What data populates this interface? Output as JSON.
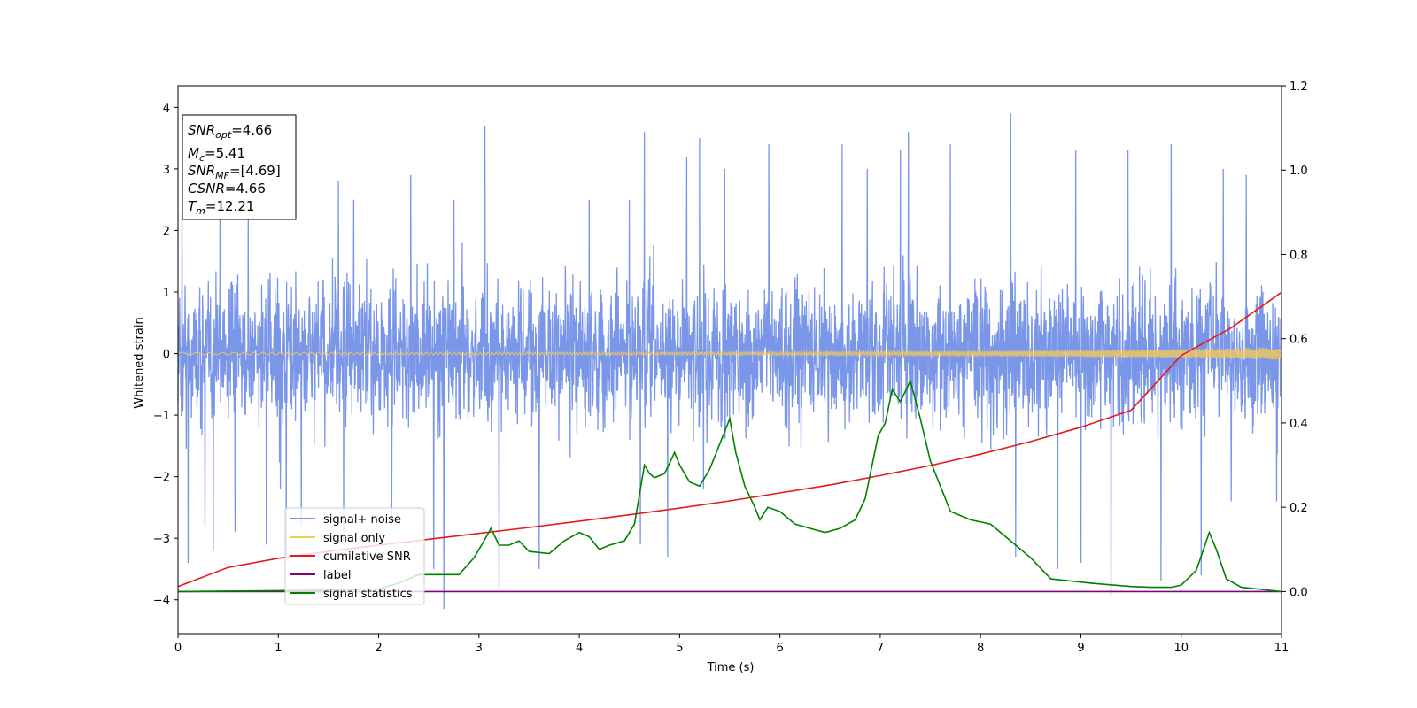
{
  "chart_data": {
    "type": "line",
    "xlabel": "Time (s)",
    "ylabel": "Whitened strain",
    "xlim": [
      0,
      11
    ],
    "ylim": [
      -4.55,
      4.35
    ],
    "y2lim": [
      -0.1,
      1.2
    ],
    "x_ticks": [
      "0",
      "1",
      "2",
      "3",
      "4",
      "5",
      "6",
      "7",
      "8",
      "9",
      "10",
      "11"
    ],
    "y_ticks": [
      "4",
      "3",
      "2",
      "1",
      "0",
      "−1",
      "−2",
      "−3",
      "−4"
    ],
    "y_tick_values": [
      4,
      3,
      2,
      1,
      0,
      -1,
      -2,
      -3,
      -4
    ],
    "y2_ticks": [
      "1.2",
      "1.0",
      "0.8",
      "0.6",
      "0.4",
      "0.2",
      "0.0"
    ],
    "y2_tick_values": [
      1.2,
      1.0,
      0.8,
      0.6,
      0.4,
      0.2,
      0.0
    ],
    "annotation": {
      "snr_opt": {
        "base": "SNR",
        "sub": "opt",
        "value": "=4.66"
      },
      "mc": {
        "base": "M",
        "sub": "c",
        "value": "=5.41"
      },
      "snr_mf": {
        "base": "SNR",
        "sub": "MF",
        "value": "=[4.69]"
      },
      "csnr": {
        "base": "CSNR",
        "value": "=4.66"
      },
      "tm": {
        "base": "T",
        "sub": "m",
        "value": "=12.21"
      }
    },
    "legend": {
      "placement": "lower-left",
      "entries": [
        {
          "label": "signal+ noise",
          "color": "#7a96e8"
        },
        {
          "label": "signal only",
          "color": "#f5c95a"
        },
        {
          "label": "cumilative SNR",
          "color": "#e31a1c"
        },
        {
          "label": "label",
          "color": "#800080"
        },
        {
          "label": "signal statistics",
          "color": "#008000"
        }
      ]
    },
    "series": [
      {
        "name": "signal+ noise",
        "axis": "left",
        "color": "#7a96e8",
        "kind": "noise",
        "spikes": [
          [
            0.04,
            2.3
          ],
          [
            0.1,
            -3.4
          ],
          [
            0.27,
            -2.8
          ],
          [
            0.35,
            -3.2
          ],
          [
            0.42,
            2.3
          ],
          [
            0.57,
            -2.9
          ],
          [
            0.7,
            2.3
          ],
          [
            0.88,
            -3.1
          ],
          [
            1.02,
            -2.2
          ],
          [
            1.08,
            -3.3
          ],
          [
            1.23,
            -2.8
          ],
          [
            1.6,
            2.8
          ],
          [
            1.65,
            -3.1
          ],
          [
            1.75,
            2.5
          ],
          [
            2.13,
            -2.8
          ],
          [
            2.32,
            2.9
          ],
          [
            2.55,
            -3.5
          ],
          [
            2.65,
            -4.15
          ],
          [
            2.75,
            2.5
          ],
          [
            3.06,
            3.7
          ],
          [
            3.2,
            -3.8
          ],
          [
            3.6,
            -3.5
          ],
          [
            4.1,
            2.5
          ],
          [
            4.5,
            2.5
          ],
          [
            4.61,
            -3.1
          ],
          [
            4.65,
            3.6
          ],
          [
            4.88,
            -3.3
          ],
          [
            5.07,
            3.2
          ],
          [
            5.24,
            -2.2
          ],
          [
            5.2,
            3.5
          ],
          [
            5.45,
            3.0
          ],
          [
            5.89,
            3.4
          ],
          [
            6.62,
            3.4
          ],
          [
            6.87,
            3.0
          ],
          [
            7.2,
            3.3
          ],
          [
            7.28,
            3.6
          ],
          [
            7.7,
            3.4
          ],
          [
            8.3,
            3.9
          ],
          [
            8.35,
            -3.3
          ],
          [
            8.77,
            -3.5
          ],
          [
            8.95,
            3.3
          ],
          [
            9.0,
            -3.4
          ],
          [
            9.3,
            -3.95
          ],
          [
            9.47,
            3.3
          ],
          [
            9.8,
            -3.7
          ],
          [
            9.9,
            3.4
          ],
          [
            10.2,
            -3.6
          ],
          [
            10.42,
            3.0
          ],
          [
            10.5,
            -2.4
          ],
          [
            10.65,
            2.9
          ],
          [
            10.95,
            -2.4
          ]
        ]
      },
      {
        "name": "signal only",
        "axis": "left",
        "color": "#f5c95a",
        "kind": "chirp",
        "start_amplitude": 0.02,
        "end_amplitude": 0.1
      },
      {
        "name": "cumilative SNR",
        "axis": "right",
        "color": "#e31a1c",
        "x": [
          0,
          0.5,
          1,
          1.5,
          2,
          2.5,
          3,
          3.5,
          4,
          4.5,
          5,
          5.5,
          6,
          6.5,
          7,
          7.5,
          8,
          8.5,
          9,
          9.5,
          10,
          10.5,
          11
        ],
        "values": [
          0.012,
          0.057,
          0.079,
          0.095,
          0.11,
          0.124,
          0.138,
          0.152,
          0.167,
          0.182,
          0.198,
          0.215,
          0.234,
          0.253,
          0.275,
          0.299,
          0.326,
          0.356,
          0.39,
          0.43,
          0.56,
          0.626,
          0.71
        ]
      },
      {
        "name": "label",
        "axis": "right",
        "color": "#800080",
        "x": [
          0,
          11
        ],
        "values": [
          0.0,
          0.0
        ]
      },
      {
        "name": "signal statistics",
        "axis": "right",
        "color": "#008000",
        "x": [
          0,
          1,
          1.5,
          2,
          2.2,
          2.4,
          2.6,
          2.8,
          2.95,
          3.05,
          3.12,
          3.2,
          3.3,
          3.4,
          3.5,
          3.7,
          3.85,
          4.0,
          4.1,
          4.2,
          4.3,
          4.45,
          4.55,
          4.65,
          4.7,
          4.75,
          4.85,
          4.95,
          5.0,
          5.1,
          5.2,
          5.3,
          5.4,
          5.5,
          5.56,
          5.65,
          5.75,
          5.8,
          5.88,
          6.0,
          6.15,
          6.3,
          6.45,
          6.6,
          6.75,
          6.85,
          6.98,
          7.05,
          7.12,
          7.2,
          7.3,
          7.4,
          7.5,
          7.7,
          7.9,
          8.1,
          8.3,
          8.5,
          8.7,
          8.9,
          9.1,
          9.3,
          9.5,
          9.7,
          9.9,
          10.0,
          10.15,
          10.28,
          10.35,
          10.45,
          10.6,
          10.8,
          11
        ],
        "values": [
          0.0,
          0.002,
          0.004,
          0.006,
          0.02,
          0.04,
          0.04,
          0.04,
          0.08,
          0.12,
          0.15,
          0.11,
          0.11,
          0.12,
          0.095,
          0.09,
          0.12,
          0.14,
          0.13,
          0.1,
          0.11,
          0.12,
          0.16,
          0.3,
          0.28,
          0.27,
          0.28,
          0.33,
          0.3,
          0.26,
          0.25,
          0.29,
          0.35,
          0.41,
          0.33,
          0.25,
          0.2,
          0.17,
          0.2,
          0.19,
          0.16,
          0.15,
          0.14,
          0.15,
          0.17,
          0.22,
          0.37,
          0.4,
          0.48,
          0.45,
          0.5,
          0.41,
          0.31,
          0.19,
          0.17,
          0.16,
          0.12,
          0.08,
          0.03,
          0.025,
          0.02,
          0.016,
          0.012,
          0.01,
          0.01,
          0.015,
          0.05,
          0.14,
          0.1,
          0.03,
          0.01,
          0.005,
          0.0
        ]
      }
    ]
  }
}
